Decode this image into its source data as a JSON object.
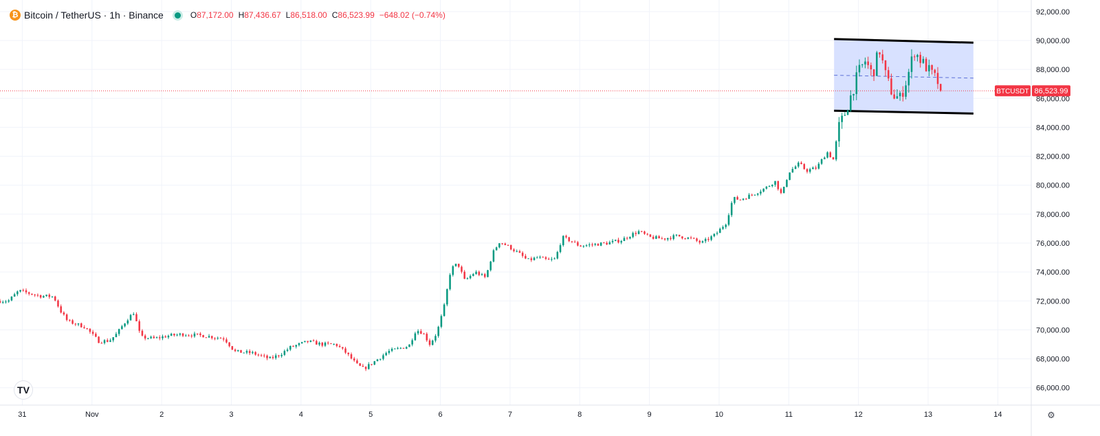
{
  "header": {
    "coin_symbol": "₿",
    "title": "Bitcoin / TetherUS · 1h · Binance",
    "open_key": "O",
    "open": "87,172.00",
    "high_key": "H",
    "high": "87,436.67",
    "low_key": "L",
    "low": "86,518.00",
    "close_key": "C",
    "close": "86,523.99",
    "change": "−648.02 (−0.74%)"
  },
  "price_tag": {
    "symbol": "BTCUSDT",
    "price": "86,523.99",
    "value": 86523.99
  },
  "logo_text": "TV",
  "settings_icon": "gear-icon",
  "colors": {
    "up": "#089981",
    "down": "#f23645",
    "grid": "#f0f3fa",
    "axis_text": "#131722",
    "box_fill": "#d1dcff",
    "box_border": "#000000",
    "price_line": "#f23645"
  },
  "chart_data": {
    "type": "candlestick",
    "title": "Bitcoin / TetherUS · 1h · Binance",
    "ylim": [
      64800,
      92800
    ],
    "xlim": [
      -0.32,
      14.48
    ],
    "y_ticks": [
      "66,000.00",
      "68,000.00",
      "70,000.00",
      "72,000.00",
      "74,000.00",
      "76,000.00",
      "78,000.00",
      "80,000.00",
      "82,000.00",
      "84,000.00",
      "86,000.00",
      "88,000.00",
      "90,000.00",
      "92,000.00"
    ],
    "y_tick_values": [
      66000,
      68000,
      70000,
      72000,
      74000,
      76000,
      78000,
      80000,
      82000,
      84000,
      86000,
      88000,
      90000,
      92000
    ],
    "x_ticks": [
      "31",
      "Nov",
      "2",
      "3",
      "4",
      "5",
      "6",
      "7",
      "8",
      "9",
      "10",
      "11",
      "12",
      "13",
      "14"
    ],
    "x_tick_values": [
      0,
      1,
      2,
      3,
      4,
      5,
      6,
      7,
      8,
      9,
      10,
      11,
      12,
      13,
      14
    ],
    "grid": true,
    "waypoints_day_price": [
      [
        -0.32,
        72000
      ],
      [
        -0.2,
        72000
      ],
      [
        -0.05,
        72700
      ],
      [
        0.25,
        72350
      ],
      [
        0.45,
        72300
      ],
      [
        0.55,
        71300
      ],
      [
        0.65,
        70600
      ],
      [
        0.9,
        70200
      ],
      [
        1.1,
        69200
      ],
      [
        1.25,
        69250
      ],
      [
        1.35,
        69700
      ],
      [
        1.5,
        70700
      ],
      [
        1.6,
        71200
      ],
      [
        1.7,
        69500
      ],
      [
        1.9,
        69400
      ],
      [
        2.1,
        69600
      ],
      [
        2.3,
        69700
      ],
      [
        2.6,
        69600
      ],
      [
        2.9,
        69400
      ],
      [
        3.05,
        68500
      ],
      [
        3.3,
        68400
      ],
      [
        3.55,
        68000
      ],
      [
        3.7,
        68300
      ],
      [
        3.85,
        68800
      ],
      [
        4.1,
        69200
      ],
      [
        4.3,
        69000
      ],
      [
        4.5,
        69000
      ],
      [
        4.65,
        68400
      ],
      [
        4.8,
        67600
      ],
      [
        4.9,
        67300
      ],
      [
        5.05,
        67800
      ],
      [
        5.25,
        68500
      ],
      [
        5.4,
        68700
      ],
      [
        5.55,
        68900
      ],
      [
        5.65,
        70000
      ],
      [
        5.75,
        69800
      ],
      [
        5.85,
        69000
      ],
      [
        5.95,
        69800
      ],
      [
        6.05,
        71500
      ],
      [
        6.15,
        74200
      ],
      [
        6.25,
        74600
      ],
      [
        6.35,
        73400
      ],
      [
        6.5,
        74000
      ],
      [
        6.65,
        73600
      ],
      [
        6.75,
        75300
      ],
      [
        6.85,
        76100
      ],
      [
        7.0,
        75700
      ],
      [
        7.15,
        75200
      ],
      [
        7.25,
        74800
      ],
      [
        7.4,
        75000
      ],
      [
        7.55,
        74800
      ],
      [
        7.65,
        74900
      ],
      [
        7.75,
        76400
      ],
      [
        7.85,
        76200
      ],
      [
        8.0,
        75800
      ],
      [
        8.2,
        75900
      ],
      [
        8.4,
        76000
      ],
      [
        8.6,
        76200
      ],
      [
        8.75,
        76600
      ],
      [
        8.85,
        76800
      ],
      [
        9.0,
        76400
      ],
      [
        9.2,
        76300
      ],
      [
        9.4,
        76500
      ],
      [
        9.6,
        76300
      ],
      [
        9.75,
        76000
      ],
      [
        9.95,
        76600
      ],
      [
        10.1,
        77400
      ],
      [
        10.2,
        79100
      ],
      [
        10.3,
        79000
      ],
      [
        10.5,
        79400
      ],
      [
        10.7,
        79900
      ],
      [
        10.8,
        80300
      ],
      [
        10.9,
        79300
      ],
      [
        11.0,
        80900
      ],
      [
        11.15,
        81500
      ],
      [
        11.25,
        81000
      ],
      [
        11.4,
        81200
      ],
      [
        11.55,
        82300
      ],
      [
        11.65,
        81700
      ],
      [
        11.7,
        83800
      ],
      [
        11.8,
        84900
      ],
      [
        11.9,
        86300
      ],
      [
        12.0,
        87800
      ],
      [
        12.1,
        88600
      ],
      [
        12.2,
        87600
      ],
      [
        12.3,
        89400
      ],
      [
        12.4,
        87400
      ],
      [
        12.5,
        86200
      ],
      [
        12.6,
        86000
      ],
      [
        12.7,
        87400
      ],
      [
        12.8,
        89300
      ],
      [
        12.9,
        88600
      ],
      [
        13.0,
        88000
      ],
      [
        13.1,
        87400
      ],
      [
        13.22,
        86524
      ]
    ],
    "annotations": [
      {
        "type": "parallel_channel",
        "from_day": 11.65,
        "to_day": 13.65,
        "upper": [
          90100,
          89850
        ],
        "lower": [
          85150,
          84950
        ],
        "midline": [
          87600,
          87400
        ]
      }
    ],
    "last_price": 86523.99
  }
}
